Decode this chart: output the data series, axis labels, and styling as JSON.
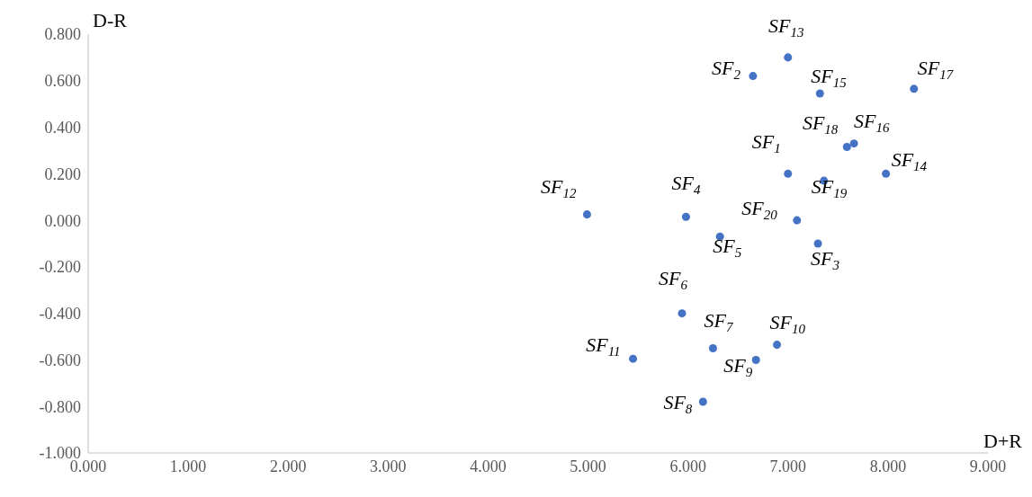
{
  "chart_data": {
    "type": "scatter",
    "xlabel": "D+R",
    "ylabel": "D-R",
    "xlim": [
      0,
      9
    ],
    "ylim": [
      -1,
      0.8
    ],
    "xticks": [
      {
        "value": 0,
        "label": "0.000"
      },
      {
        "value": 1,
        "label": "1.000"
      },
      {
        "value": 2,
        "label": "2.000"
      },
      {
        "value": 3,
        "label": "3.000"
      },
      {
        "value": 4,
        "label": "4.000"
      },
      {
        "value": 5,
        "label": "5.000"
      },
      {
        "value": 6,
        "label": "6.000"
      },
      {
        "value": 7,
        "label": "7.000"
      },
      {
        "value": 8,
        "label": "8.000"
      },
      {
        "value": 9,
        "label": "9.000"
      }
    ],
    "yticks": [
      {
        "value": -1,
        "label": "-1.000"
      },
      {
        "value": -0.8,
        "label": "-0.800"
      },
      {
        "value": -0.6,
        "label": "-0.600"
      },
      {
        "value": -0.4,
        "label": "-0.400"
      },
      {
        "value": -0.2,
        "label": "-0.200"
      },
      {
        "value": 0,
        "label": "0.000"
      },
      {
        "value": 0.2,
        "label": "0.200"
      },
      {
        "value": 0.4,
        "label": "0.400"
      },
      {
        "value": 0.6,
        "label": "0.600"
      },
      {
        "value": 0.8,
        "label": "0.800"
      }
    ],
    "grid": false,
    "legend": false,
    "marker": "circle",
    "series": [
      {
        "name": "SF$_{1}$",
        "color": "#4472c4",
        "x": [
          7.0
        ],
        "values": [
          0.2
        ]
      },
      {
        "name": "SF$_{2}$",
        "color": "#4472c4",
        "x": [
          6.65
        ],
        "values": [
          0.62
        ]
      },
      {
        "name": "SF$_{3}$",
        "color": "#4472c4",
        "x": [
          7.3
        ],
        "values": [
          -0.1
        ]
      },
      {
        "name": "SF$_{4}$",
        "color": "#4472c4",
        "x": [
          5.98
        ],
        "values": [
          0.015
        ]
      },
      {
        "name": "SF$_{5}$",
        "color": "#4472c4",
        "x": [
          6.32
        ],
        "values": [
          -0.07
        ]
      },
      {
        "name": "SF$_{6}$",
        "color": "#4472c4",
        "x": [
          5.94
        ],
        "values": [
          -0.4
        ]
      },
      {
        "name": "SF$_{7}$",
        "color": "#4472c4",
        "x": [
          6.25
        ],
        "values": [
          -0.55
        ]
      },
      {
        "name": "SF$_{8}$",
        "color": "#4472c4",
        "x": [
          6.15
        ],
        "values": [
          -0.78
        ]
      },
      {
        "name": "SF$_{9}$",
        "color": "#4472c4",
        "x": [
          6.68
        ],
        "values": [
          -0.6
        ]
      },
      {
        "name": "SF$_{10}$",
        "color": "#4472c4",
        "x": [
          6.89
        ],
        "values": [
          -0.535
        ]
      },
      {
        "name": "SF$_{11}$",
        "color": "#4472c4",
        "x": [
          5.45
        ],
        "values": [
          -0.595
        ]
      },
      {
        "name": "SF$_{12}$",
        "color": "#4472c4",
        "x": [
          4.99
        ],
        "values": [
          0.025
        ]
      },
      {
        "name": "SF$_{13}$",
        "color": "#4472c4",
        "x": [
          7.0
        ],
        "values": [
          0.7
        ]
      },
      {
        "name": "SF$_{14}$",
        "color": "#4472c4",
        "x": [
          7.98
        ],
        "values": [
          0.2
        ]
      },
      {
        "name": "SF$_{15}$",
        "color": "#4472c4",
        "x": [
          7.32
        ],
        "values": [
          0.545
        ]
      },
      {
        "name": "SF$_{16}$",
        "color": "#4472c4",
        "x": [
          7.66
        ],
        "values": [
          0.33
        ]
      },
      {
        "name": "SF$_{17}$",
        "color": "#4472c4",
        "x": [
          8.26
        ],
        "values": [
          0.565
        ]
      },
      {
        "name": "SF$_{18}$",
        "color": "#4472c4",
        "x": [
          7.59
        ],
        "values": [
          0.315
        ]
      },
      {
        "name": "SF$_{19}$",
        "color": "#4472c4",
        "x": [
          7.36
        ],
        "values": [
          0.17
        ]
      },
      {
        "name": "SF$_{20}$",
        "color": "#4472c4",
        "x": [
          7.09
        ],
        "values": [
          0
        ]
      }
    ]
  }
}
